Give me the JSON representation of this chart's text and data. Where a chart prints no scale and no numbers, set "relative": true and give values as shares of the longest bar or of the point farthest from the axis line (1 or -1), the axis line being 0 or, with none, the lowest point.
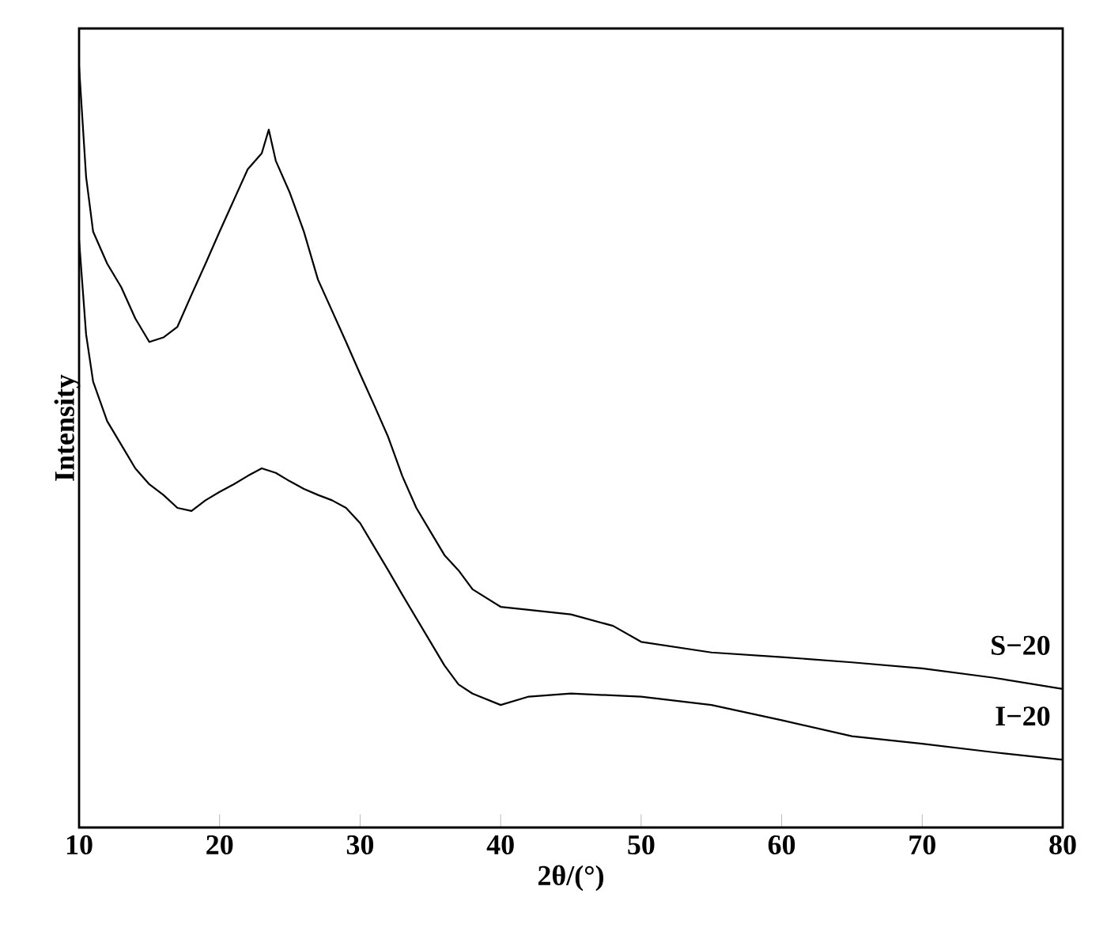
{
  "chart_data": {
    "type": "line",
    "relative": true,
    "xlabel": "2θ/(°)",
    "ylabel": "Intensity",
    "xlim": [
      10,
      80
    ],
    "xticks": [
      10,
      20,
      30,
      40,
      50,
      60,
      70,
      80
    ],
    "marker": "none",
    "line_style": "solid",
    "series": [
      {
        "name": "S−20",
        "color": "#000000",
        "x": [
          10,
          10.5,
          11,
          12,
          13,
          14,
          15,
          16,
          17,
          18,
          19,
          20,
          21,
          22,
          23,
          23.5,
          24,
          25,
          26,
          27,
          28,
          29,
          30,
          31,
          32,
          33,
          34,
          35,
          36,
          37,
          38,
          40,
          42,
          45,
          48,
          50,
          55,
          60,
          65,
          70,
          75,
          80
        ],
        "values": [
          1.0,
          0.855,
          0.783,
          0.741,
          0.71,
          0.669,
          0.638,
          0.644,
          0.658,
          0.7,
          0.741,
          0.783,
          0.824,
          0.865,
          0.886,
          0.917,
          0.876,
          0.834,
          0.783,
          0.72,
          0.679,
          0.638,
          0.596,
          0.555,
          0.513,
          0.462,
          0.42,
          0.389,
          0.358,
          0.338,
          0.313,
          0.29,
          0.286,
          0.28,
          0.265,
          0.244,
          0.23,
          0.224,
          0.217,
          0.209,
          0.197,
          0.182
        ]
      },
      {
        "name": "I−20",
        "color": "#000000",
        "x": [
          10,
          10.5,
          11,
          12,
          13,
          14,
          15,
          16,
          17,
          18,
          19,
          20,
          21,
          22,
          23,
          24,
          25,
          26,
          27,
          28,
          29,
          30,
          31,
          32,
          33,
          34,
          35,
          36,
          37,
          38,
          40,
          42,
          45,
          50,
          55,
          60,
          65,
          70,
          75,
          80
        ],
        "values": [
          0.772,
          0.648,
          0.586,
          0.534,
          0.503,
          0.472,
          0.451,
          0.437,
          0.42,
          0.416,
          0.43,
          0.441,
          0.451,
          0.462,
          0.472,
          0.466,
          0.455,
          0.445,
          0.437,
          0.43,
          0.42,
          0.4,
          0.369,
          0.338,
          0.306,
          0.275,
          0.244,
          0.213,
          0.188,
          0.176,
          0.161,
          0.172,
          0.176,
          0.172,
          0.161,
          0.141,
          0.12,
          0.11,
          0.099,
          0.089
        ]
      }
    ]
  }
}
